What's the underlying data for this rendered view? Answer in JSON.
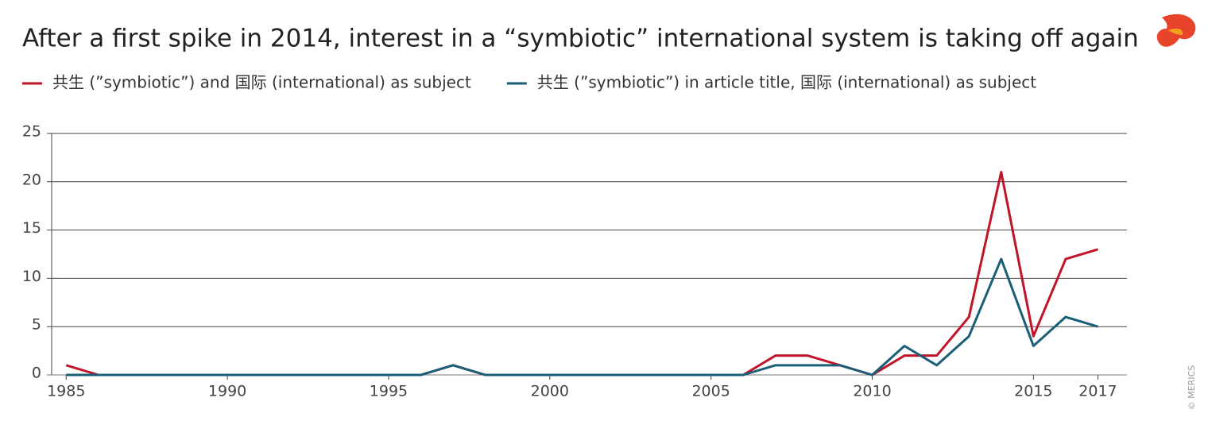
{
  "chart_data": {
    "type": "line",
    "title": "After a first spike in 2014, interest in a “symbiotic” international system is taking off again",
    "credit": "© MERICS",
    "x": [
      1985,
      1986,
      1987,
      1988,
      1989,
      1990,
      1991,
      1992,
      1993,
      1994,
      1995,
      1996,
      1997,
      1998,
      1999,
      2000,
      2001,
      2002,
      2003,
      2004,
      2005,
      2006,
      2007,
      2008,
      2009,
      2010,
      2011,
      2012,
      2013,
      2014,
      2015,
      2016,
      2017
    ],
    "series": [
      {
        "name": "共生 (”symbiotic”) and 国际 (international) as subject",
        "color": "#c0142a",
        "values": [
          1,
          0,
          0,
          0,
          0,
          0,
          0,
          0,
          0,
          0,
          0,
          0,
          1,
          0,
          0,
          0,
          0,
          0,
          0,
          0,
          0,
          0,
          2,
          2,
          1,
          0,
          2,
          2,
          6,
          21,
          4,
          12,
          13
        ]
      },
      {
        "name": "共生 (”symbiotic”) in article title, 国际 (international) as subject",
        "color": "#1a5e78",
        "values": [
          0,
          0,
          0,
          0,
          0,
          0,
          0,
          0,
          0,
          0,
          0,
          0,
          1,
          0,
          0,
          0,
          0,
          0,
          0,
          0,
          0,
          0,
          1,
          1,
          1,
          0,
          3,
          1,
          4,
          12,
          3,
          6,
          5
        ]
      }
    ],
    "xlim": [
      1984.55,
      2017.9
    ],
    "xticks": [
      1985,
      1990,
      1995,
      2000,
      2005,
      2010,
      2015,
      2017
    ],
    "ylim": [
      0,
      25
    ],
    "yticks": [
      0,
      5,
      10,
      15,
      20,
      25
    ],
    "grid": true
  }
}
